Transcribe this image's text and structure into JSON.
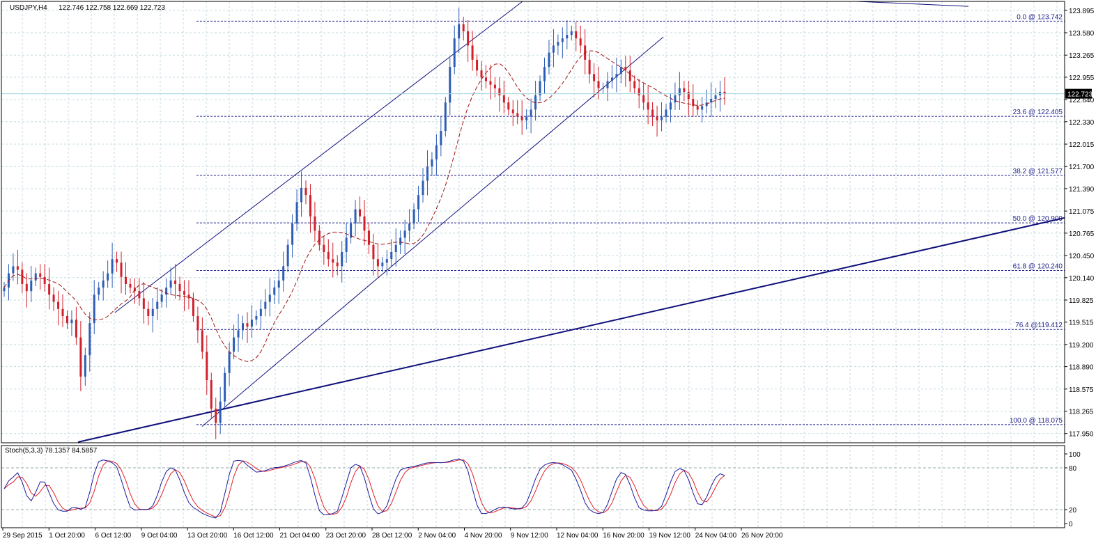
{
  "header": {
    "symbol": "USDJPY,H4",
    "ohlc": "122.746 122.758 122.669 122.723"
  },
  "colors": {
    "grid": "#c3dbe0",
    "bull": "#2e5db5",
    "bear": "#d21f2a",
    "ma": "#a01414",
    "trend": "#10107a",
    "fib": "#1f1f8c",
    "stoch_main": "#1a1a9a",
    "stoch_signal": "#e0202a",
    "price_badge": "#000000",
    "price_line": "#9fd3dd"
  },
  "chart_data": [
    {
      "type": "candlestick",
      "ylim": [
        117.82,
        124.02
      ],
      "y_ticks": [
        "123.895",
        "123.580",
        "123.265",
        "122.955",
        "122.640",
        "122.330",
        "122.015",
        "121.700",
        "121.390",
        "121.075",
        "120.765",
        "120.450",
        "120.140",
        "119.825",
        "119.515",
        "119.200",
        "118.890",
        "118.575",
        "118.265",
        "117.950"
      ],
      "x_ticks": [
        "29 Sep 2015",
        "1 Oct 20:00",
        "6 Oct 12:00",
        "9 Oct 04:00",
        "13 Oct 20:00",
        "16 Oct 12:00",
        "21 Oct 04:00",
        "23 Oct 20:00",
        "28 Oct 12:00",
        "2 Nov 04:00",
        "4 Nov 20:00",
        "9 Nov 12:00",
        "12 Nov 04:00",
        "16 Nov 20:00",
        "19 Nov 12:00",
        "24 Nov 04:00",
        "26 Nov 20:00"
      ],
      "current_price": "122.723",
      "fibonacci": [
        {
          "label": "0.0 @ 123.742",
          "value": 123.742
        },
        {
          "label": "23.6 @ 122.405",
          "value": 122.405
        },
        {
          "label": "38.2 @ 121.577",
          "value": 121.577
        },
        {
          "label": "50.0 @ 120.909",
          "value": 120.909
        },
        {
          "label": "61.8 @ 120.240",
          "value": 120.24
        },
        {
          "label": "76.4 @119.412",
          "value": 119.412
        },
        {
          "label": "100.0 @ 118.075",
          "value": 118.075
        }
      ],
      "closes": [
        120.0,
        120.2,
        120.3,
        120.25,
        120.05,
        119.95,
        120.1,
        120.2,
        120.15,
        120.05,
        119.9,
        119.8,
        119.7,
        119.6,
        119.5,
        119.55,
        119.3,
        118.75,
        119.05,
        119.5,
        119.9,
        120.0,
        120.1,
        120.2,
        120.4,
        120.35,
        120.15,
        120.05,
        120.0,
        119.95,
        119.85,
        119.7,
        119.6,
        119.7,
        119.8,
        119.9,
        120.0,
        120.1,
        120.05,
        119.95,
        119.9,
        119.85,
        119.6,
        119.4,
        119.1,
        118.7,
        118.3,
        118.1,
        118.4,
        118.8,
        119.1,
        119.3,
        119.4,
        119.5,
        119.45,
        119.55,
        119.6,
        119.7,
        119.8,
        119.9,
        120.0,
        120.1,
        120.3,
        120.6,
        120.9,
        121.2,
        121.4,
        121.3,
        121.0,
        120.8,
        120.6,
        120.5,
        120.4,
        120.35,
        120.3,
        120.5,
        120.7,
        120.9,
        121.1,
        121.0,
        120.8,
        120.6,
        120.4,
        120.3,
        120.35,
        120.4,
        120.5,
        120.6,
        120.7,
        120.8,
        120.9,
        121.1,
        121.3,
        121.5,
        121.7,
        121.8,
        122.0,
        122.2,
        122.6,
        123.1,
        123.5,
        123.7,
        123.6,
        123.4,
        123.2,
        123.05,
        122.95,
        122.9,
        122.85,
        122.8,
        122.7,
        122.6,
        122.5,
        122.45,
        122.4,
        122.35,
        122.4,
        122.5,
        122.7,
        122.9,
        123.1,
        123.3,
        123.4,
        123.45,
        123.5,
        123.55,
        123.6,
        123.5,
        123.4,
        123.2,
        123.0,
        122.9,
        122.8,
        122.8,
        122.9,
        122.95,
        123.0,
        123.1,
        123.05,
        122.9,
        122.8,
        122.7,
        122.6,
        122.5,
        122.4,
        122.35,
        122.4,
        122.5,
        122.6,
        122.7,
        122.8,
        122.75,
        122.65,
        122.55,
        122.5,
        122.55,
        122.6,
        122.65,
        122.7,
        122.75,
        122.72
      ]
    },
    {
      "type": "line",
      "label": "Stoch(5,3,3) 78.1357 84.5857",
      "ylim": [
        0,
        100
      ],
      "levels": [
        "100",
        "80",
        "20",
        "0"
      ],
      "level_values": [
        100,
        80,
        20,
        0
      ]
    }
  ]
}
